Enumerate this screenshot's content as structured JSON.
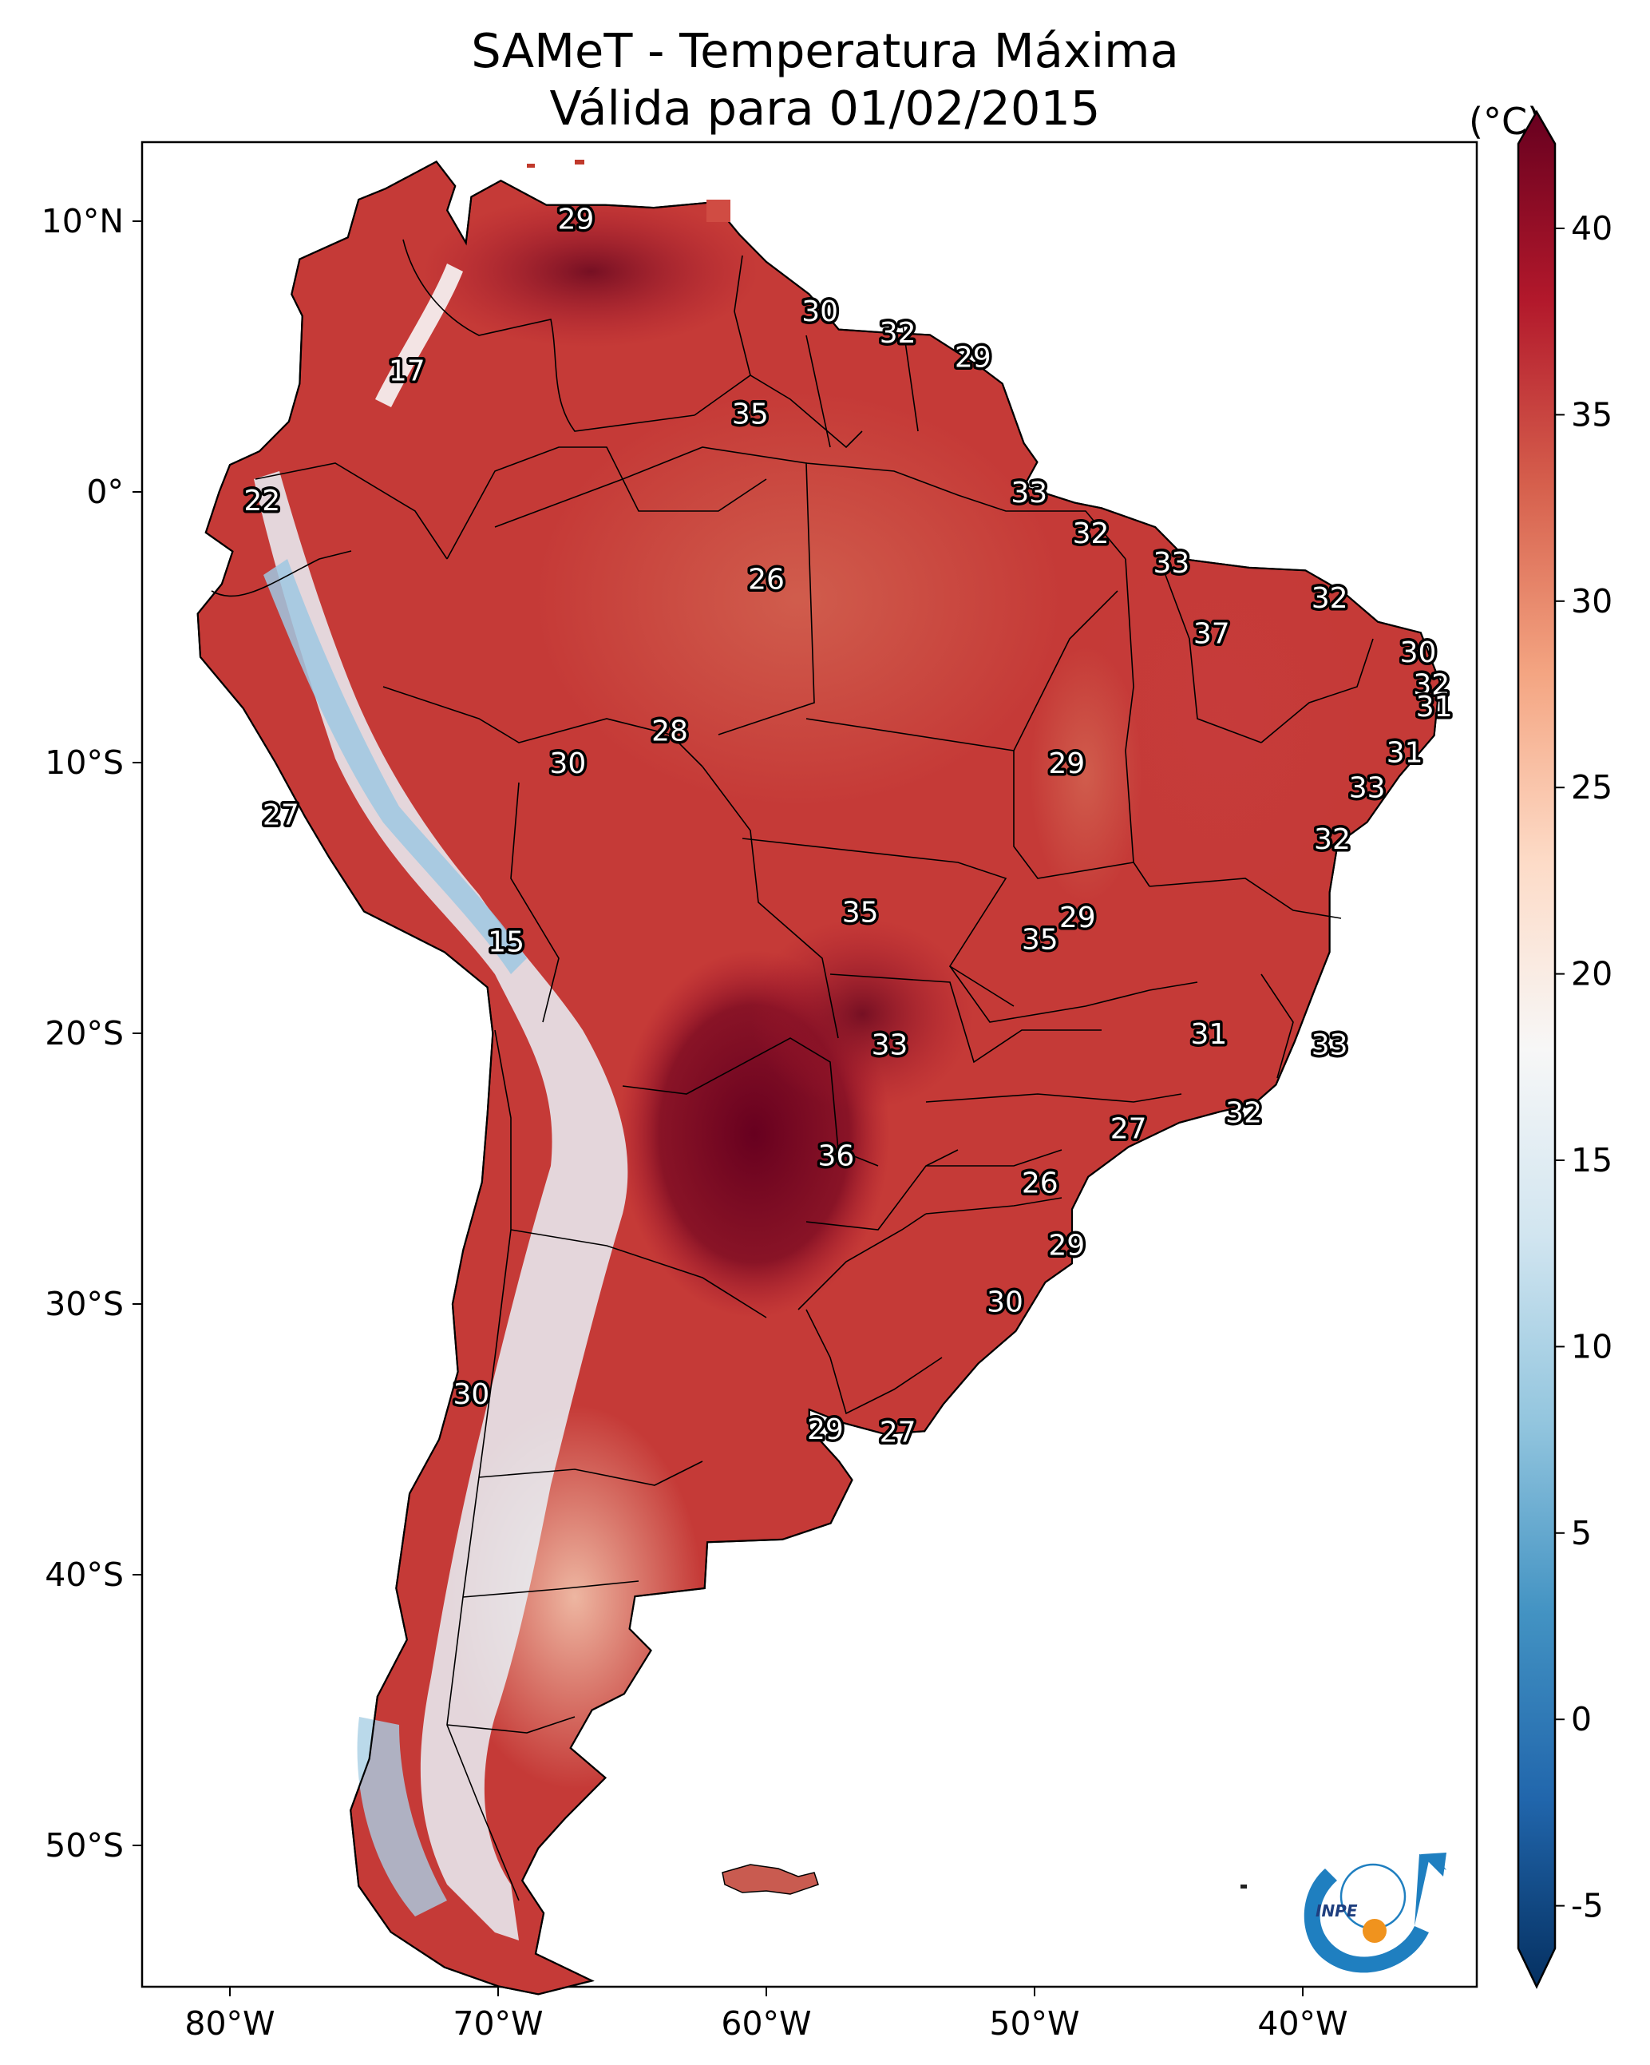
{
  "title": {
    "line1": "SAMeT - Temperatura Máxima",
    "line2": "Válida para 01/02/2015"
  },
  "colorbar": {
    "unit": "(°C)",
    "ticks": [
      "40",
      "35",
      "30",
      "25",
      "20",
      "15",
      "10",
      "5",
      "0",
      "-5"
    ],
    "stops": [
      "#67001f",
      "#b2182b",
      "#d6604d",
      "#f4a582",
      "#fddbc7",
      "#f7f7f7",
      "#d1e5f0",
      "#92c5de",
      "#4393c3",
      "#2166ac",
      "#053061"
    ]
  },
  "axes": {
    "lat_ticks": [
      "10°N",
      "0°",
      "10°S",
      "20°S",
      "30°S",
      "40°S",
      "50°S"
    ],
    "lon_ticks": [
      "80°W",
      "70°W",
      "60°W",
      "50°W",
      "40°W"
    ]
  },
  "logo": {
    "text": "INPE"
  },
  "temperature_labels": [
    {
      "name": "temp-label-venezuela-north",
      "value": "29",
      "lon": -67.1,
      "lat": 10.1
    },
    {
      "name": "temp-label-colombia",
      "value": "17",
      "lon": -73.4,
      "lat": 4.5
    },
    {
      "name": "temp-label-guyana",
      "value": "30",
      "lon": -58.0,
      "lat": 6.7
    },
    {
      "name": "temp-label-suriname",
      "value": "32",
      "lon": -55.1,
      "lat": 5.9
    },
    {
      "name": "temp-label-french-guiana",
      "value": "29",
      "lon": -52.3,
      "lat": 5.0
    },
    {
      "name": "temp-label-roraima",
      "value": "35",
      "lon": -60.6,
      "lat": 2.9
    },
    {
      "name": "temp-label-ecuador",
      "value": "22",
      "lon": -78.8,
      "lat": -0.3
    },
    {
      "name": "temp-label-amapa",
      "value": "33",
      "lon": -50.2,
      "lat": 0.0
    },
    {
      "name": "temp-label-para-coast",
      "value": "32",
      "lon": -47.9,
      "lat": -1.5
    },
    {
      "name": "temp-label-maranhao",
      "value": "33",
      "lon": -44.9,
      "lat": -2.6
    },
    {
      "name": "temp-label-amazonas",
      "value": "26",
      "lon": -60.0,
      "lat": -3.2
    },
    {
      "name": "temp-label-ceara",
      "value": "32",
      "lon": -39.0,
      "lat": -3.9
    },
    {
      "name": "temp-label-piaui",
      "value": "37",
      "lon": -43.4,
      "lat": -5.2
    },
    {
      "name": "temp-label-rn",
      "value": "30",
      "lon": -35.7,
      "lat": -5.9
    },
    {
      "name": "temp-label-paraiba",
      "value": "32",
      "lon": -35.2,
      "lat": -7.1
    },
    {
      "name": "temp-label-pernambuco",
      "value": "31",
      "lon": -35.1,
      "lat": -7.9
    },
    {
      "name": "temp-label-acre-north",
      "value": "28",
      "lon": -63.6,
      "lat": -8.8
    },
    {
      "name": "temp-label-acre",
      "value": "30",
      "lon": -67.4,
      "lat": -10.0
    },
    {
      "name": "temp-label-tocantins",
      "value": "29",
      "lon": -48.8,
      "lat": -10.0
    },
    {
      "name": "temp-label-alagoas",
      "value": "31",
      "lon": -36.2,
      "lat": -9.6
    },
    {
      "name": "temp-label-sergipe",
      "value": "33",
      "lon": -37.6,
      "lat": -10.9
    },
    {
      "name": "temp-label-peru-coast",
      "value": "27",
      "lon": -78.1,
      "lat": -11.9
    },
    {
      "name": "temp-label-bahia-coast",
      "value": "32",
      "lon": -38.9,
      "lat": -12.8
    },
    {
      "name": "temp-label-mato-grosso",
      "value": "35",
      "lon": -56.5,
      "lat": -15.5
    },
    {
      "name": "temp-label-goias-north",
      "value": "29",
      "lon": -48.4,
      "lat": -15.7
    },
    {
      "name": "temp-label-goias",
      "value": "35",
      "lon": -49.8,
      "lat": -16.5
    },
    {
      "name": "temp-label-bolivia-andes",
      "value": "15",
      "lon": -69.7,
      "lat": -16.6
    },
    {
      "name": "temp-label-minas-gerais",
      "value": "31",
      "lon": -43.5,
      "lat": -20.0
    },
    {
      "name": "temp-label-espirito-santo",
      "value": "33",
      "lon": -39.0,
      "lat": -20.4
    },
    {
      "name": "temp-label-mato-grosso-sul",
      "value": "33",
      "lon": -55.4,
      "lat": -20.4
    },
    {
      "name": "temp-label-rio-de-janeiro",
      "value": "32",
      "lon": -42.2,
      "lat": -22.9
    },
    {
      "name": "temp-label-sao-paulo",
      "value": "27",
      "lon": -46.5,
      "lat": -23.5
    },
    {
      "name": "temp-label-paraguay",
      "value": "36",
      "lon": -57.4,
      "lat": -24.5
    },
    {
      "name": "temp-label-parana",
      "value": "26",
      "lon": -49.8,
      "lat": -25.5
    },
    {
      "name": "temp-label-santa-catarina",
      "value": "29",
      "lon": -48.8,
      "lat": -27.8
    },
    {
      "name": "temp-label-rio-grande-sul",
      "value": "30",
      "lon": -51.1,
      "lat": -29.9
    },
    {
      "name": "temp-label-chile-central",
      "value": "30",
      "lon": -71.0,
      "lat": -33.3
    },
    {
      "name": "temp-label-uruguay-west",
      "value": "29",
      "lon": -57.8,
      "lat": -34.6
    },
    {
      "name": "temp-label-uruguay-east",
      "value": "27",
      "lon": -55.1,
      "lat": -34.7
    }
  ]
}
